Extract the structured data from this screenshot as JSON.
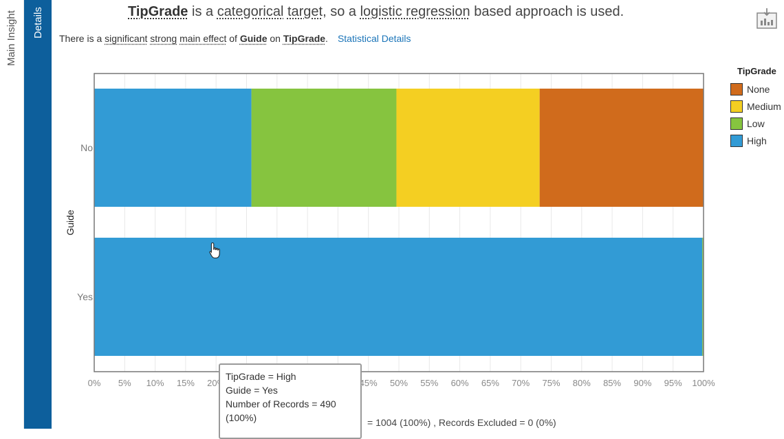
{
  "sidebar": {
    "main_insight_tab": "Main Insight",
    "details_tab": "Details"
  },
  "headline": {
    "target": "TipGrade",
    "t1": " is a ",
    "categorical": "categorical",
    "t2": " ",
    "target_word": "target",
    "t3": ", so a ",
    "method": "logistic regression",
    "t4": " based approach is used."
  },
  "subline": {
    "t1": "There is a ",
    "significant": "significant",
    "t2": " ",
    "strong": "strong",
    "t3": " ",
    "main_effect": "main effect",
    "t4": " of ",
    "factor": "Guide",
    "t5": " on ",
    "target": "TipGrade",
    "t6": ".",
    "details_link": "Statistical Details"
  },
  "icons": {
    "export": "export-report-icon",
    "cursor": "hand-pointer-icon"
  },
  "legend": {
    "title": "TipGrade",
    "items": [
      {
        "label": "None",
        "color": "#D06B1C"
      },
      {
        "label": "Medium",
        "color": "#F4CF22"
      },
      {
        "label": "Low",
        "color": "#86C43F"
      },
      {
        "label": "High",
        "color": "#329BD5"
      }
    ]
  },
  "chart_data": {
    "type": "bar",
    "orientation": "horizontal",
    "stacked": "percent",
    "ylabel": "Guide",
    "categories": [
      "No",
      "Yes"
    ],
    "xlim": [
      0,
      100
    ],
    "x_ticks": [
      "0%",
      "5%",
      "10%",
      "15%",
      "20%",
      "25%",
      "30%",
      "35%",
      "40%",
      "45%",
      "50%",
      "55%",
      "60%",
      "65%",
      "70%",
      "75%",
      "80%",
      "85%",
      "90%",
      "95%",
      "100%"
    ],
    "grid": true,
    "legend_position": "right",
    "series": [
      {
        "name": "High",
        "color": "#329BD5",
        "values": [
          25.8,
          99.8
        ]
      },
      {
        "name": "Low",
        "color": "#86C43F",
        "values": [
          23.8,
          0.2
        ]
      },
      {
        "name": "Medium",
        "color": "#F4CF22",
        "values": [
          23.5,
          0
        ]
      },
      {
        "name": "None",
        "color": "#D06B1C",
        "values": [
          26.9,
          0
        ]
      }
    ]
  },
  "tooltip": {
    "line1": "TipGrade = High",
    "line2": "Guide = Yes",
    "line3": "Number of Records = 490",
    "line4": "(100%)"
  },
  "footer": {
    "text": "= 1004 (100%) , Records Excluded = 0 (0%)"
  }
}
